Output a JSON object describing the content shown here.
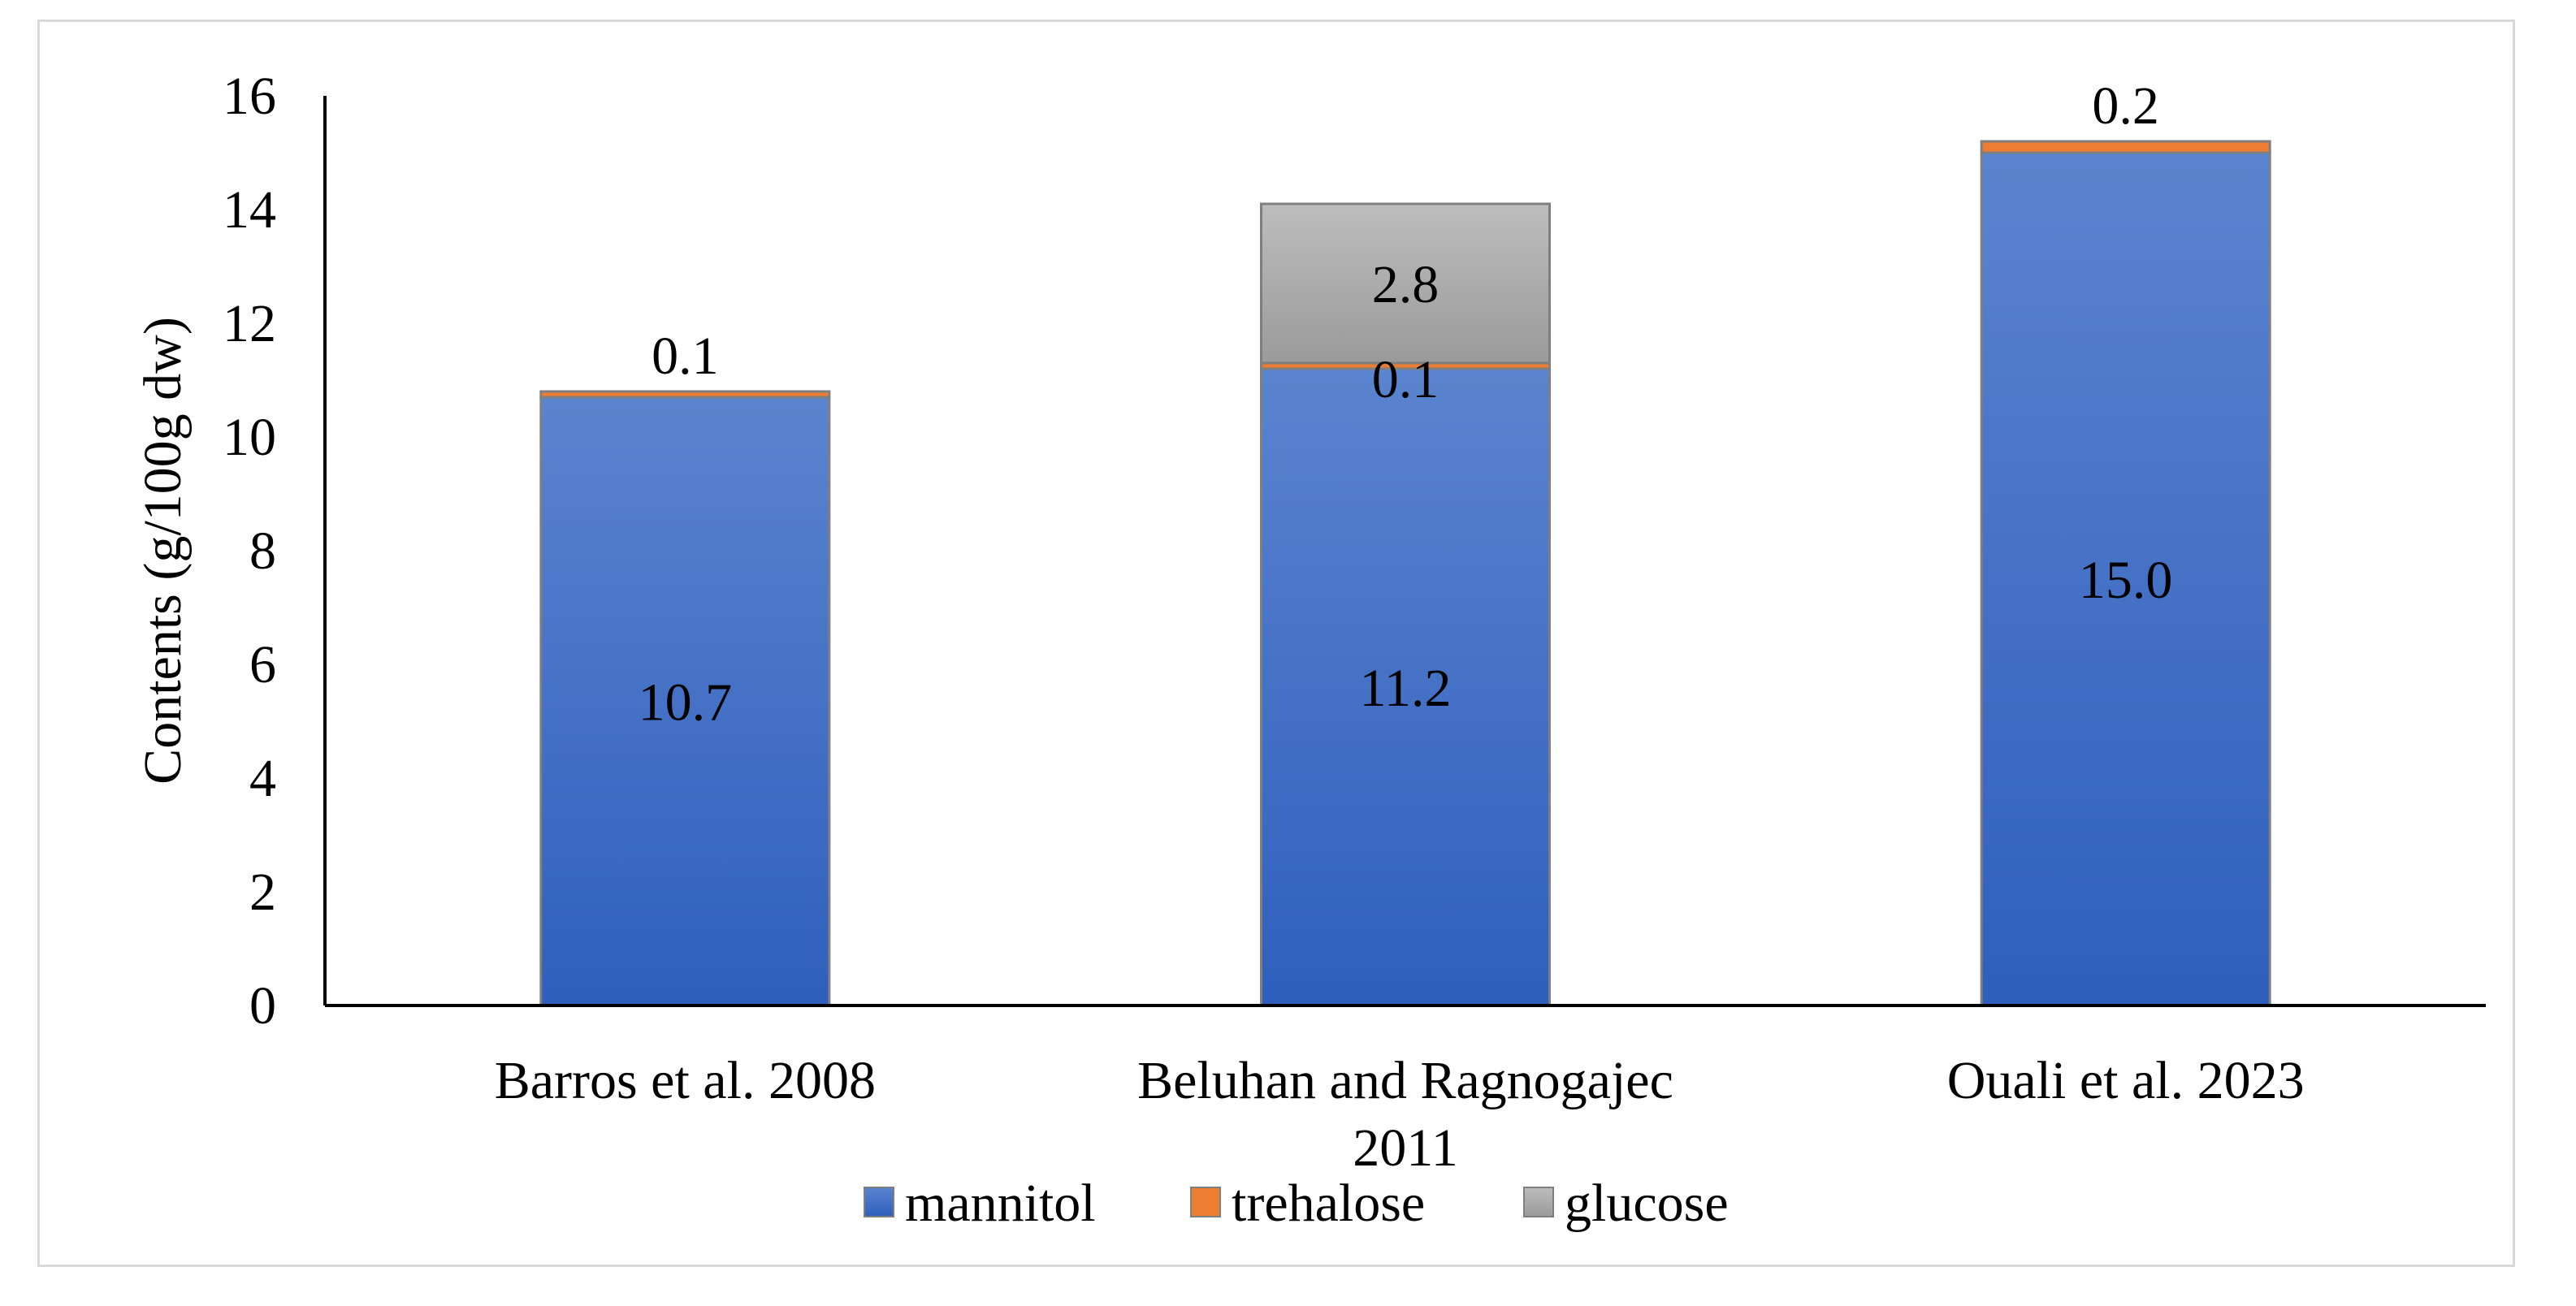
{
  "chart_data": {
    "type": "bar",
    "stacked": true,
    "title": "",
    "xlabel": "",
    "ylabel": "Contents (g/100g dw)",
    "ylim": [
      0,
      16
    ],
    "yticks": [
      0,
      2,
      4,
      6,
      8,
      10,
      12,
      14,
      16
    ],
    "ytick_labels": [
      "0",
      "2",
      "4",
      "6",
      "8",
      "10",
      "12",
      "14",
      "16"
    ],
    "grid": false,
    "legend_position": "bottom",
    "categories": [
      [
        "Barros et al. 2008"
      ],
      [
        "Beluhan and Ragnogajec",
        "2011"
      ],
      [
        "Ouali et al. 2023"
      ]
    ],
    "series": [
      {
        "name": "mannitol",
        "color": "#4472c4",
        "values": [
          10.7,
          11.2,
          15.0
        ],
        "labels": [
          "10.7",
          "11.2",
          "15.0"
        ]
      },
      {
        "name": "trehalose",
        "color": "#ed7d31",
        "values": [
          0.1,
          0.1,
          0.2
        ],
        "labels": [
          "0.1",
          "0.1",
          "0.2"
        ]
      },
      {
        "name": "glucose",
        "color": "#a5a5a5",
        "values": [
          0,
          2.8,
          0
        ],
        "labels": [
          "",
          "2.8",
          ""
        ]
      }
    ]
  }
}
